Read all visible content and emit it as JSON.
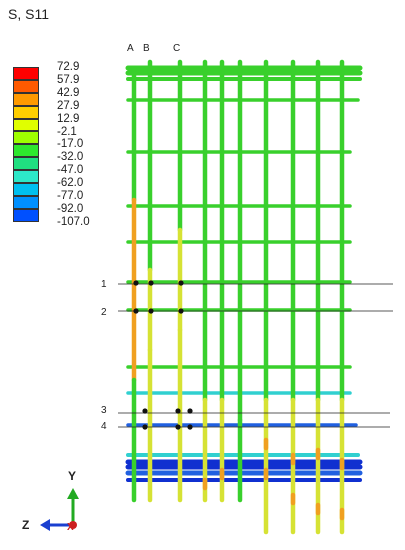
{
  "title": "S, S11",
  "legend": {
    "values": [
      "72.9",
      "57.9",
      "42.9",
      "27.9",
      "12.9",
      "-2.1",
      "-17.0",
      "-32.0",
      "-47.0",
      "-62.0",
      "-77.0",
      "-92.0",
      "-107.0"
    ],
    "colors": [
      "#ff0000",
      "#ff5a00",
      "#ff9a00",
      "#ffce00",
      "#e0ff00",
      "#9fff00",
      "#2ee82e",
      "#20e080",
      "#2de8c8",
      "#00c0f0",
      "#0090ff",
      "#0050ff",
      "#0000ff"
    ]
  },
  "column_labels": [
    "A",
    "B",
    "C"
  ],
  "section_labels": [
    "1",
    "2",
    "3",
    "4"
  ],
  "axes": {
    "y_label": "Y",
    "z_label": "Z",
    "x_label": "X"
  },
  "colors": {
    "bar_green": "#39d02c",
    "bar_dark": "#1f8a1a",
    "bar_orange": "#f0a020",
    "bar_yellow": "#d6e234",
    "bar_cyan": "#30d0d0",
    "bar_blue": "#2060e0",
    "bar_navy": "#1030d0"
  }
}
